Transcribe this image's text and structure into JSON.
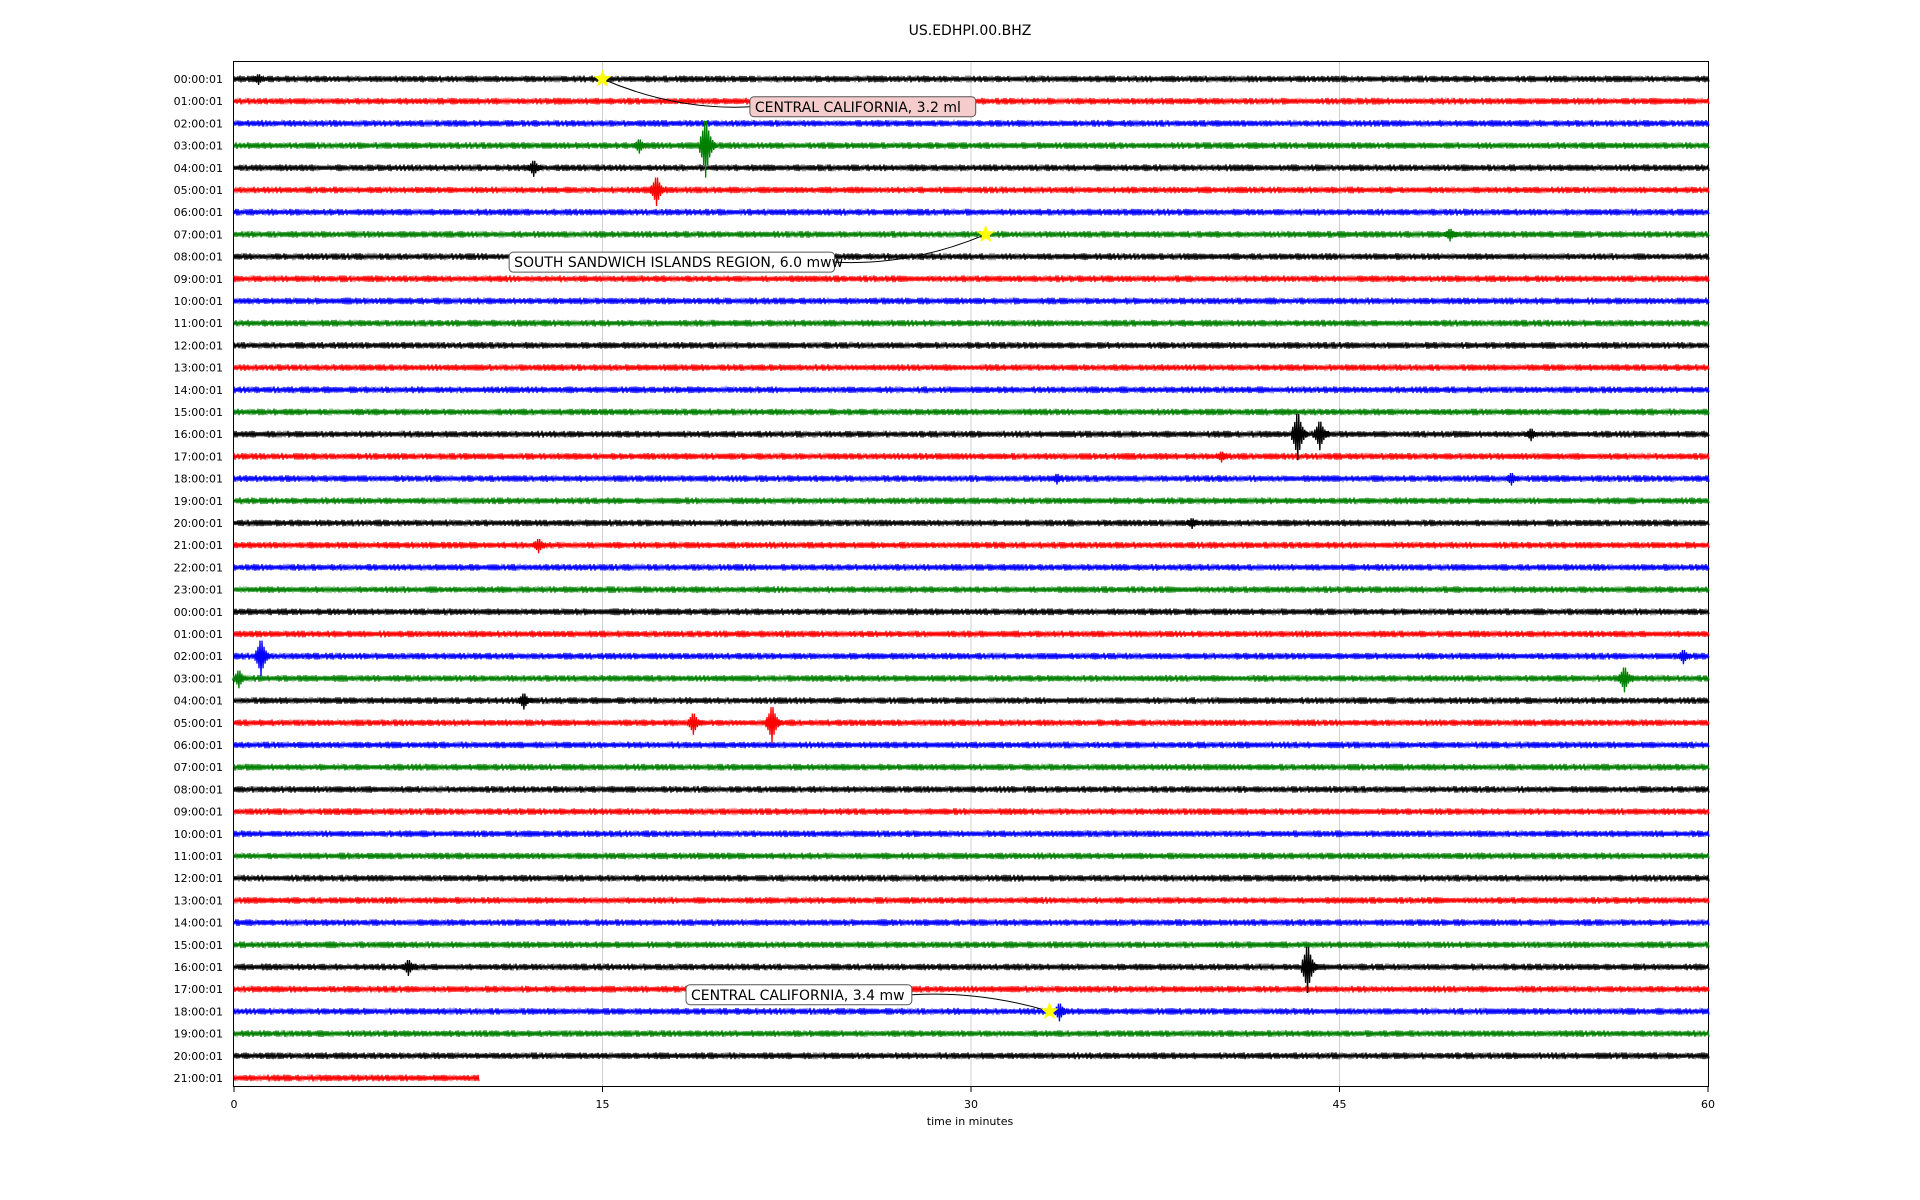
{
  "chart_data": {
    "type": "line",
    "title": "US.EDHPI.00.BHZ",
    "xlabel": "time in minutes",
    "ylabel": "",
    "xlim": [
      0,
      60
    ],
    "xticks": [
      0,
      15,
      30,
      45,
      60
    ],
    "grid": "vertical lines at 15, 30, 45",
    "colors": [
      "#000000",
      "#ff0000",
      "#0000ff",
      "#008000"
    ],
    "row_labels": [
      "00:00:01",
      "01:00:01",
      "02:00:01",
      "03:00:01",
      "04:00:01",
      "05:00:01",
      "06:00:01",
      "07:00:01",
      "08:00:01",
      "09:00:01",
      "10:00:01",
      "11:00:01",
      "12:00:01",
      "13:00:01",
      "14:00:01",
      "15:00:01",
      "16:00:01",
      "17:00:01",
      "18:00:01",
      "19:00:01",
      "20:00:01",
      "21:00:01",
      "22:00:01",
      "23:00:01",
      "00:00:01",
      "01:00:01",
      "02:00:01",
      "03:00:01",
      "04:00:01",
      "05:00:01",
      "06:00:01",
      "07:00:01",
      "08:00:01",
      "09:00:01",
      "10:00:01",
      "11:00:01",
      "12:00:01",
      "13:00:01",
      "14:00:01",
      "15:00:01",
      "16:00:01",
      "17:00:01",
      "18:00:01",
      "19:00:01",
      "20:00:01",
      "21:00:01"
    ],
    "last_row_end_minute": 10,
    "spikes": [
      {
        "row": 0,
        "x": 1.0,
        "amp": 6
      },
      {
        "row": 3,
        "x": 16.5,
        "amp": 8
      },
      {
        "row": 3,
        "x": 19.2,
        "amp": 32
      },
      {
        "row": 4,
        "x": 12.2,
        "amp": 9
      },
      {
        "row": 5,
        "x": 17.2,
        "amp": 16
      },
      {
        "row": 7,
        "x": 49.5,
        "amp": 7
      },
      {
        "row": 16,
        "x": 43.3,
        "amp": 26
      },
      {
        "row": 16,
        "x": 44.2,
        "amp": 16
      },
      {
        "row": 16,
        "x": 52.8,
        "amp": 7
      },
      {
        "row": 17,
        "x": 40.2,
        "amp": 6
      },
      {
        "row": 18,
        "x": 33.5,
        "amp": 6
      },
      {
        "row": 18,
        "x": 52.0,
        "amp": 7
      },
      {
        "row": 20,
        "x": 39.0,
        "amp": 6
      },
      {
        "row": 21,
        "x": 12.4,
        "amp": 8
      },
      {
        "row": 26,
        "x": 1.1,
        "amp": 20
      },
      {
        "row": 26,
        "x": 59.0,
        "amp": 8
      },
      {
        "row": 27,
        "x": 0.2,
        "amp": 10
      },
      {
        "row": 27,
        "x": 56.6,
        "amp": 14
      },
      {
        "row": 28,
        "x": 11.8,
        "amp": 9
      },
      {
        "row": 29,
        "x": 18.7,
        "amp": 12
      },
      {
        "row": 29,
        "x": 21.9,
        "amp": 20
      },
      {
        "row": 40,
        "x": 7.1,
        "amp": 9
      },
      {
        "row": 40,
        "x": 43.7,
        "amp": 26
      },
      {
        "row": 42,
        "x": 33.6,
        "amp": 10
      }
    ],
    "events": [
      {
        "label": "CENTRAL CALIFORNIA, 3.2 ml",
        "row": 0,
        "x": 15.0,
        "label_row": 1.25,
        "label_x": 21.0,
        "marker_color": "#ffff00",
        "box_bg": "#f4cccc"
      },
      {
        "label": "SOUTH SANDWICH ISLANDS REGION, 6.0 mww",
        "row": 7,
        "x": 30.6,
        "label_row": 8.25,
        "label_x": 11.2,
        "marker_color": "#ffff00",
        "box_bg": "#ffffff"
      },
      {
        "label": "CENTRAL CALIFORNIA, 3.4 mw",
        "row": 42,
        "x": 33.2,
        "label_row": 41.25,
        "label_x": 18.4,
        "marker_color": "#ffff00",
        "box_bg": "#ffffff"
      }
    ]
  }
}
